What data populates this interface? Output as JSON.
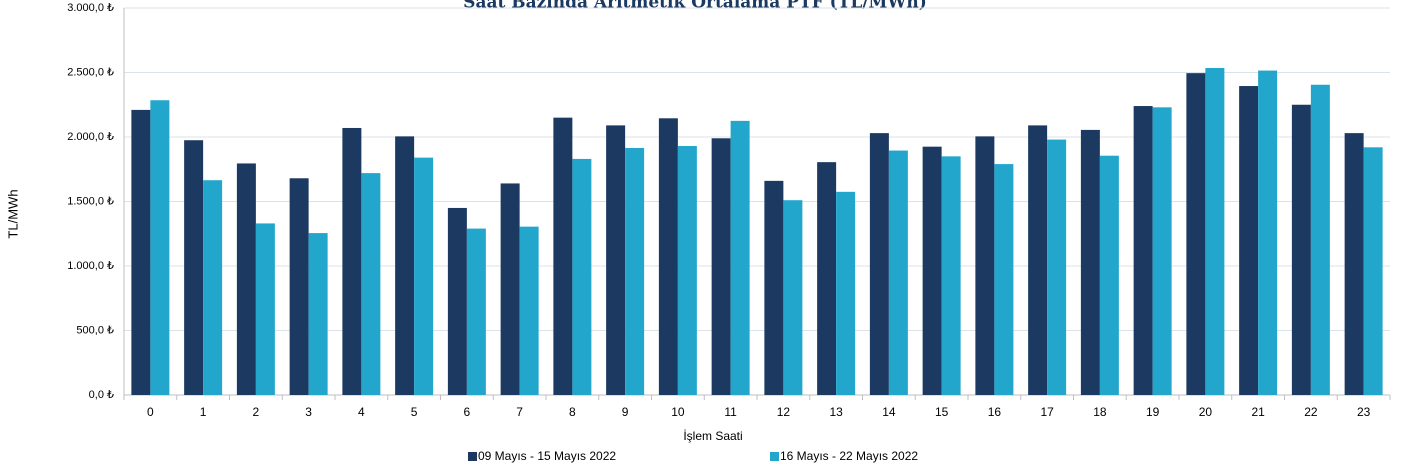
{
  "chart_data": {
    "type": "bar",
    "title": "Saat Bazında Aritmetik Ortalama PTF (TL/MWh)",
    "xlabel": "İşlem Saati",
    "ylabel": "TL/MWh",
    "categories": [
      "0",
      "1",
      "2",
      "3",
      "4",
      "5",
      "6",
      "7",
      "8",
      "9",
      "10",
      "11",
      "12",
      "13",
      "14",
      "15",
      "16",
      "17",
      "18",
      "19",
      "20",
      "21",
      "22",
      "23"
    ],
    "series": [
      {
        "name": "09 Mayıs - 15 Mayıs 2022",
        "color": "#1b3961",
        "values": [
          2210,
          1975,
          1795,
          1680,
          2070,
          2005,
          1450,
          1640,
          2150,
          2090,
          2145,
          1990,
          1660,
          1805,
          2030,
          1925,
          2005,
          2090,
          2055,
          2240,
          2495,
          2395,
          2250,
          2030
        ]
      },
      {
        "name": "16 Mayıs - 22 Mayıs 2022",
        "color": "#22a6cc",
        "values": [
          2285,
          1665,
          1330,
          1255,
          1720,
          1840,
          1290,
          1305,
          1830,
          1915,
          1930,
          2125,
          1510,
          1575,
          1895,
          1850,
          1790,
          1980,
          1855,
          2230,
          2535,
          2515,
          2405,
          1920
        ]
      }
    ],
    "ylim": [
      0,
      3000
    ],
    "yticks": [
      {
        "value": 0,
        "label": "0,0 ₺"
      },
      {
        "value": 500,
        "label": "500,0 ₺"
      },
      {
        "value": 1000,
        "label": "1.000,0 ₺"
      },
      {
        "value": 1500,
        "label": "1.500,0 ₺"
      },
      {
        "value": 2000,
        "label": "2.000,0 ₺"
      },
      {
        "value": 2500,
        "label": "2.500,0 ₺"
      },
      {
        "value": 3000,
        "label": "3.000,0 ₺"
      }
    ],
    "grid": true,
    "legend": "bottom"
  }
}
